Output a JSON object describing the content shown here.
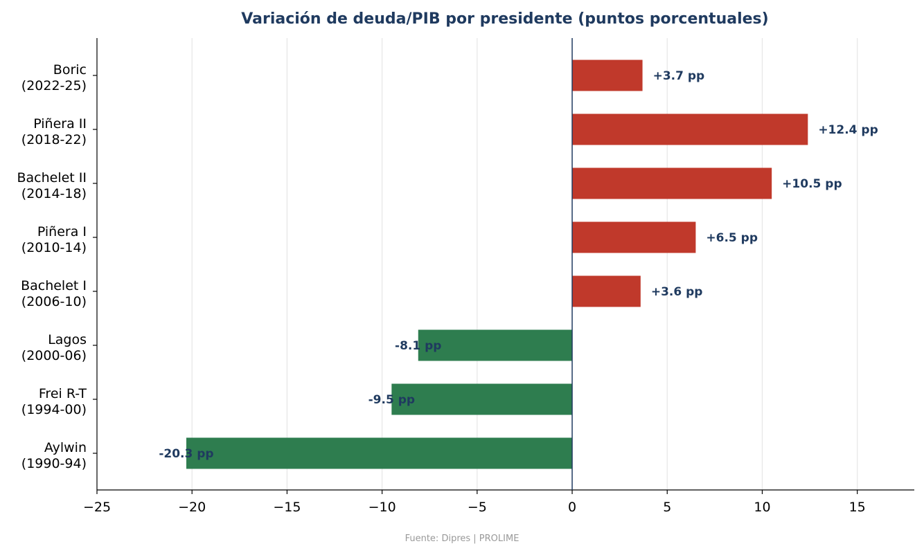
{
  "chart_data": {
    "type": "bar",
    "orientation": "horizontal",
    "title": "Variación de deuda/PIB por presidente (puntos porcentuales)",
    "categories": [
      [
        "Boric",
        "(2022-25)"
      ],
      [
        "Piñera II",
        "(2018-22)"
      ],
      [
        "Bachelet II",
        "(2014-18)"
      ],
      [
        "Piñera I",
        "(2010-14)"
      ],
      [
        "Bachelet I",
        "(2006-10)"
      ],
      [
        "Lagos",
        "(2000-06)"
      ],
      [
        "Frei R-T",
        "(1994-00)"
      ],
      [
        "Aylwin",
        "(1990-94)"
      ]
    ],
    "values": [
      3.7,
      12.4,
      10.5,
      6.5,
      3.6,
      -8.1,
      -9.5,
      -20.3
    ],
    "data_labels": [
      "+3.7 pp",
      "+12.4 pp",
      "+10.5 pp",
      "+6.5 pp",
      "+3.6 pp",
      "-8.1 pp",
      "-9.5 pp",
      "-20.3 pp"
    ],
    "xlim": [
      -25,
      18
    ],
    "xticks": [
      -25,
      -20,
      -15,
      -10,
      -5,
      0,
      5,
      10,
      15
    ],
    "xtick_labels": [
      "−25",
      "−20",
      "−15",
      "−10",
      "−5",
      "0",
      "5",
      "10",
      "15"
    ],
    "xlabel": "",
    "ylabel": "",
    "grid": "vertical",
    "legend": "none",
    "colors": {
      "positive": "#c0392b",
      "negative": "#2e7d4f",
      "title": "#1f3a5f",
      "data_label": "#1f3a5f",
      "zero_line": "#1f3a5f",
      "grid": "#e6e6e6",
      "source": "#999999"
    },
    "source": "Fuente: Dipres  |  PROLIME"
  }
}
